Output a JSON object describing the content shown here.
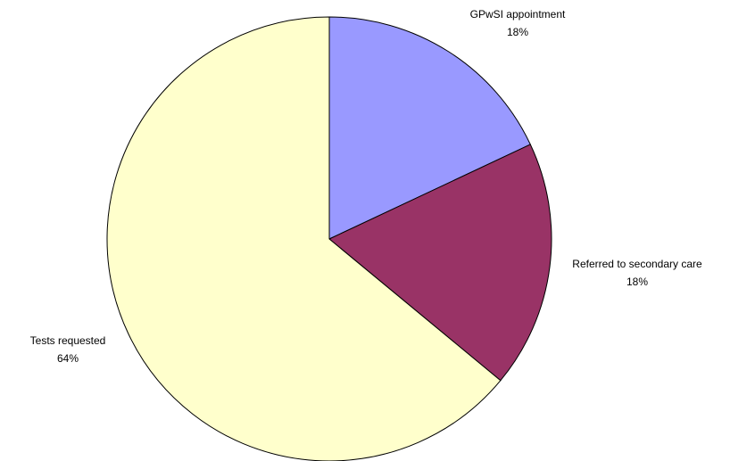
{
  "chart_data": {
    "type": "pie",
    "categories": [
      "GPwSI appointment",
      "Referred to secondary care",
      "Tests requested"
    ],
    "values": [
      18,
      18,
      64
    ],
    "value_labels": [
      "18%",
      "18%",
      "64%"
    ],
    "colors": [
      "#9999ff",
      "#993366",
      "#ffffcc"
    ]
  }
}
